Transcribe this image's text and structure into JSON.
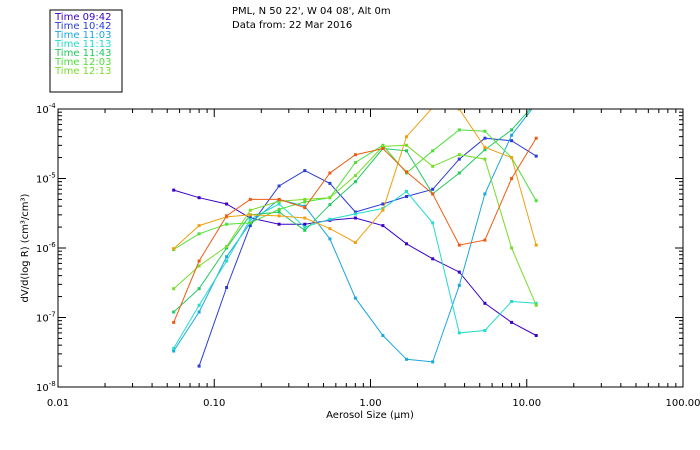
{
  "header": {
    "line1": "PML, N 50 22', W 04 08', Alt 0m",
    "line2": "Data from: 22 Mar 2016"
  },
  "chart_data": {
    "type": "line",
    "title": "",
    "xlabel": "Aerosol Size (μm)",
    "ylabel": "dV/d(log R) (cm³/cm³)",
    "x_scale": "log",
    "y_scale": "log",
    "xlim": [
      0.01,
      100
    ],
    "ylim": [
      1e-08,
      0.0001
    ],
    "x_ticks": [
      {
        "value": 0.01,
        "label": "0.01"
      },
      {
        "value": 0.1,
        "label": "0.10"
      },
      {
        "value": 1,
        "label": "1.00"
      },
      {
        "value": 10,
        "label": "10.00"
      },
      {
        "value": 100,
        "label": "100.00"
      }
    ],
    "y_ticks": [
      {
        "value": 1e-08,
        "mant": "10",
        "exp": "-8"
      },
      {
        "value": 1e-07,
        "mant": "10",
        "exp": "-7"
      },
      {
        "value": 1e-06,
        "mant": "10",
        "exp": "-6"
      },
      {
        "value": 1e-05,
        "mant": "10",
        "exp": "-5"
      },
      {
        "value": 0.0001,
        "mant": "10",
        "exp": "-4"
      }
    ],
    "legend_position": "top-left",
    "series": [
      {
        "name": "Time 09:42",
        "color": "#3a00c8",
        "x": [
          0.055,
          0.08,
          0.12,
          0.17,
          0.26,
          0.38,
          0.55,
          0.8,
          1.2,
          1.7,
          2.5,
          3.7,
          5.4,
          8,
          11.5
        ],
        "y": [
          6.8e-06,
          5.3e-06,
          4.3e-06,
          2.7e-06,
          2.2e-06,
          2.2e-06,
          2.5e-06,
          2.7e-06,
          2.1e-06,
          1.15e-06,
          7e-07,
          4.5e-07,
          1.6e-07,
          8.5e-08,
          5.5e-08
        ]
      },
      {
        "name": "Time 10:42",
        "color": "#2a3cd8",
        "x": [
          0.08,
          0.12,
          0.17,
          0.26,
          0.38,
          0.55,
          0.8,
          1.2,
          1.7,
          2.5,
          3.7,
          5.4,
          8,
          11.5
        ],
        "y": [
          2e-08,
          2.7e-07,
          2.1e-06,
          7.8e-06,
          1.3e-05,
          8.5e-06,
          3.3e-06,
          4.3e-06,
          5.5e-06,
          7e-06,
          1.9e-05,
          3.8e-05,
          3.5e-05,
          2.1e-05
        ]
      },
      {
        "name": "Time 11:03",
        "color": "#1aa6e0",
        "x": [
          0.055,
          0.08,
          0.12,
          0.17,
          0.26,
          0.38,
          0.55,
          0.8,
          1.2,
          1.7,
          2.5,
          3.7,
          5.4,
          8,
          11.5
        ],
        "y": [
          3.3e-08,
          1.2e-07,
          7.5e-07,
          2.3e-06,
          5e-06,
          4e-06,
          1.35e-06,
          1.9e-07,
          5.5e-08,
          2.5e-08,
          2.3e-08,
          2.9e-07,
          6e-06,
          4.2e-05,
          0.00012
        ]
      },
      {
        "name": "Time 11:13",
        "color": "#22dccc",
        "x": [
          0.055,
          0.08,
          0.12,
          0.17,
          0.26,
          0.38,
          0.55,
          0.8,
          1.2,
          1.7,
          2.5,
          3.7,
          5.4,
          8,
          11.5
        ],
        "y": [
          3.6e-08,
          1.5e-07,
          6.5e-07,
          2.6e-06,
          4.3e-06,
          2e-06,
          2.6e-06,
          3.1e-06,
          3.7e-06,
          6.5e-06,
          2.3e-06,
          6e-08,
          6.5e-08,
          1.7e-07,
          1.6e-07
        ]
      },
      {
        "name": "Time 11:43",
        "color": "#22c860",
        "x": [
          0.055,
          0.08,
          0.12,
          0.17,
          0.26,
          0.38,
          0.55,
          0.8,
          1.2,
          1.7,
          2.5,
          3.7,
          5.4,
          8,
          11.5
        ],
        "y": [
          1.2e-07,
          2.6e-07,
          1e-06,
          3e-06,
          3.3e-06,
          1.8e-06,
          4.2e-06,
          9e-06,
          2.7e-05,
          2.5e-05,
          6e-06,
          1.2e-05,
          2.6e-05,
          5e-05,
          0.000125
        ]
      },
      {
        "name": "Time 12:03",
        "color": "#4ce038",
        "x": [
          0.055,
          0.08,
          0.12,
          0.17,
          0.26,
          0.38,
          0.55,
          0.8,
          1.2,
          1.7,
          2.5,
          3.7,
          5.4,
          8,
          11.5
        ],
        "y": [
          9.5e-07,
          1.6e-06,
          2.2e-06,
          2.3e-06,
          3.6e-06,
          4.6e-06,
          5.3e-06,
          1.7e-05,
          3e-05,
          1.2e-05,
          2.5e-05,
          5e-05,
          4.8e-05,
          2e-05,
          4.8e-06
        ]
      },
      {
        "name": "Time 12:13",
        "color": "#78dc2a",
        "x": [
          0.055,
          0.08,
          0.12,
          0.17,
          0.26,
          0.38,
          0.55,
          0.8,
          1.2,
          1.7,
          2.5,
          3.7,
          5.4,
          8,
          11.5
        ],
        "y": [
          2.6e-07,
          5.5e-07,
          1.05e-06,
          3.5e-06,
          4.7e-06,
          5e-06,
          5.3e-06,
          1.1e-05,
          2.9e-05,
          3e-05,
          1.5e-05,
          2.2e-05,
          1.9e-05,
          1e-06,
          1.5e-07
        ]
      },
      {
        "name": "",
        "color": "#f0a010",
        "x": [
          0.055,
          0.08,
          0.12,
          0.17,
          0.26,
          0.38,
          0.55,
          0.8,
          1.2,
          1.7,
          2.5,
          3.7,
          5.4,
          8,
          11.5
        ],
        "y": [
          9.8e-07,
          2.1e-06,
          2.8e-06,
          3e-06,
          2.9e-06,
          2.7e-06,
          1.9e-06,
          1.2e-06,
          3.5e-06,
          4e-05,
          0.000105,
          0.0001,
          2.8e-05,
          2e-05,
          1.1e-06
        ]
      },
      {
        "name": "",
        "color": "#f05a10",
        "x": [
          0.055,
          0.08,
          0.12,
          0.17,
          0.26,
          0.38,
          0.55,
          0.8,
          1.2,
          1.7,
          2.5,
          3.7,
          5.4,
          8,
          11.5
        ],
        "y": [
          8.5e-08,
          6.5e-07,
          2.9e-06,
          5e-06,
          5e-06,
          3.8e-06,
          1.2e-05,
          2.2e-05,
          2.7e-05,
          1.25e-05,
          6e-06,
          1.1e-06,
          1.3e-06,
          1e-05,
          3.8e-05
        ]
      }
    ]
  }
}
